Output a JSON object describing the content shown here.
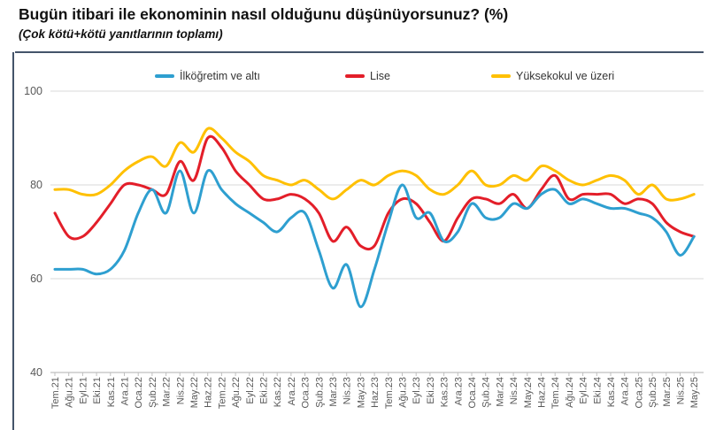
{
  "header": {
    "title": "Bugün itibari ile ekonominin nasıl olduğunu düşünüyorsunuz? (%)",
    "subtitle": "(Çok kötü+kötü yanıtlarının toplamı)"
  },
  "colors": {
    "accent_rule": "#44546a",
    "grid": "#d9d9d9",
    "axis": "#bfbfbf",
    "tick_label": "#595959",
    "blue": "#2e9fd0",
    "red": "#e31e29",
    "yellow": "#ffc000"
  },
  "chart_data": {
    "type": "line",
    "title": "Bugün itibari ile ekonominin nasıl olduğunu düşünüyorsunuz? (%)",
    "subtitle": "(Çok kötü+kötü yanıtlarının toplamı)",
    "legend_position": "top",
    "grid": true,
    "ylim": [
      40,
      100
    ],
    "yticks": [
      100,
      80,
      60,
      40
    ],
    "x": [
      "Tem.21",
      "Ağu.21",
      "Eyl.21",
      "Eki.21",
      "Kas.21",
      "Ara.21",
      "Oca.22",
      "Şub.22",
      "Mar.22",
      "Nis.22",
      "May.22",
      "Haz.22",
      "Tem.22",
      "Ağu.22",
      "Eyl.22",
      "Eki.22",
      "Kas.22",
      "Ara.22",
      "Oca.23",
      "Şub.23",
      "Mar.23",
      "Nis.23",
      "May.23",
      "Haz.23",
      "Tem.23",
      "Ağu.23",
      "Eyl.23",
      "Eki.23",
      "Kas.23",
      "Ara.23",
      "Oca.24",
      "Şub.24",
      "Mar.24",
      "Nis.24",
      "May.24",
      "Haz.24",
      "Tem.24",
      "Ağu.24",
      "Eyl.24",
      "Eki.24",
      "Kas.24",
      "Ara.24",
      "Oca.25",
      "Şub.25",
      "Mar.25",
      "Nis.25",
      "May.25"
    ],
    "series": [
      {
        "name": "İlköğretim ve altı",
        "color": "#2e9fd0",
        "values": [
          62,
          62,
          62,
          61,
          62,
          66,
          74,
          79,
          74,
          83,
          74,
          83,
          79,
          76,
          74,
          72,
          70,
          73,
          74,
          66,
          58,
          63,
          54,
          62,
          72,
          80,
          73,
          74,
          68,
          70,
          76,
          73,
          73,
          76,
          75,
          78,
          79,
          76,
          77,
          76,
          75,
          75,
          74,
          73,
          70,
          65,
          69
        ]
      },
      {
        "name": "Lise",
        "color": "#e31e29",
        "values": [
          74,
          69,
          69,
          72,
          76,
          80,
          80,
          79,
          78,
          85,
          81,
          90,
          88,
          83,
          80,
          77,
          77,
          78,
          77,
          74,
          68,
          71,
          67,
          67,
          74,
          77,
          76,
          72,
          68,
          73,
          77,
          77,
          76,
          78,
          75,
          79,
          82,
          77,
          78,
          78,
          78,
          76,
          77,
          76,
          72,
          70,
          69
        ]
      },
      {
        "name": "Yüksekokul ve üzeri",
        "color": "#ffc000",
        "values": [
          79,
          79,
          78,
          78,
          80,
          83,
          85,
          86,
          84,
          89,
          87,
          92,
          90,
          87,
          85,
          82,
          81,
          80,
          81,
          79,
          77,
          79,
          81,
          80,
          82,
          83,
          82,
          79,
          78,
          80,
          83,
          80,
          80,
          82,
          81,
          84,
          83,
          81,
          80,
          81,
          82,
          81,
          78,
          80,
          77,
          77,
          78
        ]
      }
    ]
  }
}
